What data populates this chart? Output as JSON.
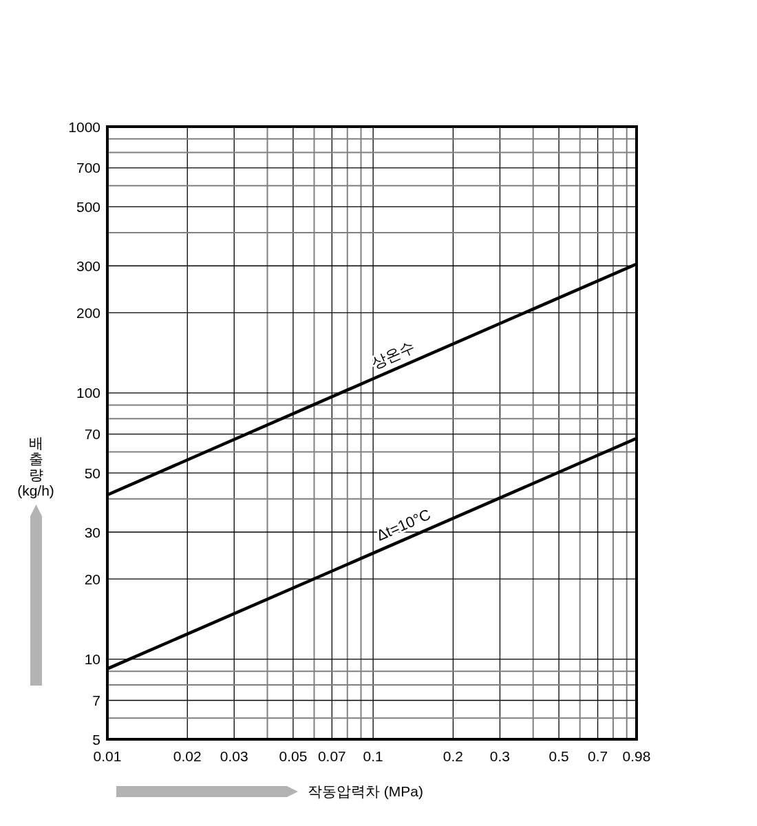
{
  "chart_data": {
    "type": "line",
    "xlabel": "작동압력차 (MPa)",
    "ylabel": "배출량 (kg/h)",
    "log": "xy",
    "xlim": [
      0.01,
      0.98
    ],
    "ylim": [
      5,
      1000
    ],
    "xticks": [
      0.01,
      0.02,
      0.03,
      {
        "value": 0.04,
        "label": null
      },
      0.05,
      {
        "value": 0.06,
        "label": null
      },
      0.07,
      {
        "value": 0.08,
        "label": null
      },
      {
        "value": 0.09,
        "label": null
      },
      0.1,
      0.2,
      0.3,
      {
        "value": 0.4,
        "label": null
      },
      0.5,
      {
        "value": 0.6,
        "label": null
      },
      0.7,
      {
        "value": 0.8,
        "label": null
      },
      {
        "value": 0.9,
        "label": null
      },
      0.98
    ],
    "yticks": [
      5,
      {
        "value": 6,
        "label": null
      },
      7,
      {
        "value": 8,
        "label": null
      },
      {
        "value": 9,
        "label": null
      },
      10,
      20,
      30,
      {
        "value": 40,
        "label": null
      },
      50,
      {
        "value": 60,
        "label": null
      },
      70,
      {
        "value": 80,
        "label": null
      },
      {
        "value": 90,
        "label": null
      },
      100,
      200,
      300,
      {
        "value": 400,
        "label": null
      },
      500,
      {
        "value": 600,
        "label": null
      },
      700,
      {
        "value": 800,
        "label": null
      },
      {
        "value": 900,
        "label": null
      },
      1000
    ],
    "grid": true,
    "series": [
      {
        "name": "상온수",
        "color": "#000000",
        "x": [
          0.01,
          0.1,
          0.98
        ],
        "values": [
          41.4,
          113,
          305
        ]
      },
      {
        "name": "Δt=10°C",
        "color": "#000000",
        "x": [
          0.01,
          0.1,
          0.98
        ],
        "values": [
          9.2,
          25,
          67.5
        ]
      }
    ]
  }
}
